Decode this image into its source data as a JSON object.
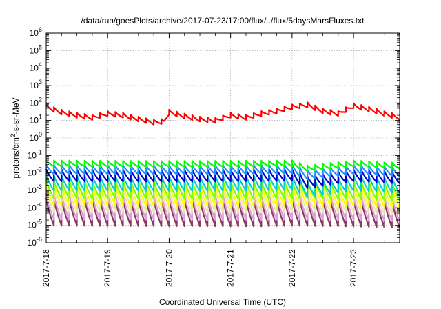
{
  "chart_data": {
    "type": "line",
    "title": "/data/run/goesPlots/archive/2017-07-23/17:00/flux/../flux/5daysMarsFluxes.txt",
    "xlabel": "Coordinated Universal Time (UTC)",
    "ylabel_parts": {
      "pre": "protons/cm",
      "sup": "2",
      "post": "-s-sr-MeV"
    },
    "y_scale": "log",
    "ylim": [
      1e-06,
      1000000
    ],
    "y_ticks": [
      {
        "base": "10",
        "exp": "-6"
      },
      {
        "base": "10",
        "exp": "-5"
      },
      {
        "base": "10",
        "exp": "-4"
      },
      {
        "base": "10",
        "exp": "-3"
      },
      {
        "base": "10",
        "exp": "-2"
      },
      {
        "base": "10",
        "exp": "-1"
      },
      {
        "base": "10",
        "exp": "0"
      },
      {
        "base": "10",
        "exp": "1"
      },
      {
        "base": "10",
        "exp": "2"
      },
      {
        "base": "10",
        "exp": "3"
      },
      {
        "base": "10",
        "exp": "4"
      },
      {
        "base": "10",
        "exp": "5"
      },
      {
        "base": "10",
        "exp": "6"
      }
    ],
    "x_ticks": [
      "2017-7-18",
      "2017-7-19",
      "2017-7-20",
      "2017-7-21",
      "2017-7-22",
      "2017-7-23"
    ],
    "xlim": [
      "2017-07-18 00:00",
      "2017-07-23 18:00"
    ],
    "grid": true,
    "sawtooth_period_hours": 3,
    "series": [
      {
        "color": "#ff0000",
        "points": [
          [
            "2017-07-18 00:00",
            60
          ],
          [
            "2017-07-18 06:00",
            30
          ],
          [
            "2017-07-18 12:00",
            20
          ],
          [
            "2017-07-18 18:00",
            15
          ],
          [
            "2017-07-19 00:00",
            25
          ],
          [
            "2017-07-19 06:00",
            20
          ],
          [
            "2017-07-19 12:00",
            12
          ],
          [
            "2017-07-19 18:00",
            8
          ],
          [
            "2017-07-19 22:00",
            9
          ],
          [
            "2017-07-20 00:00",
            30
          ],
          [
            "2017-07-20 06:00",
            18
          ],
          [
            "2017-07-20 12:00",
            12
          ],
          [
            "2017-07-20 18:00",
            10
          ],
          [
            "2017-07-21 00:00",
            20
          ],
          [
            "2017-07-21 06:00",
            15
          ],
          [
            "2017-07-21 12:00",
            25
          ],
          [
            "2017-07-21 18:00",
            35
          ],
          [
            "2017-07-22 00:00",
            60
          ],
          [
            "2017-07-22 06:00",
            80
          ],
          [
            "2017-07-22 12:00",
            35
          ],
          [
            "2017-07-22 18:00",
            25
          ],
          [
            "2017-07-23 00:00",
            70
          ],
          [
            "2017-07-23 06:00",
            45
          ],
          [
            "2017-07-23 12:00",
            25
          ],
          [
            "2017-07-23 18:00",
            15
          ]
        ],
        "jump_ratio": 1.9
      },
      {
        "color": "#00ff00",
        "points": [
          [
            "2017-07-18 00:00",
            0.035
          ],
          [
            "2017-07-20 00:00",
            0.032
          ],
          [
            "2017-07-21 12:00",
            0.034
          ],
          [
            "2017-07-22 00:00",
            0.035
          ],
          [
            "2017-07-22 06:00",
            0.018
          ],
          [
            "2017-07-23 00:00",
            0.035
          ],
          [
            "2017-07-23 18:00",
            0.025
          ]
        ],
        "jump_ratio": 2.2
      },
      {
        "color": "#1e90ff",
        "points": [
          [
            "2017-07-18 00:00",
            0.016
          ],
          [
            "2017-07-20 00:00",
            0.015
          ],
          [
            "2017-07-21 12:00",
            0.016
          ],
          [
            "2017-07-22 00:00",
            0.017
          ],
          [
            "2017-07-22 06:00",
            0.008
          ],
          [
            "2017-07-23 00:00",
            0.016
          ],
          [
            "2017-07-23 18:00",
            0.012
          ]
        ],
        "jump_ratio": 3.5
      },
      {
        "color": "#0000cd",
        "points": [
          [
            "2017-07-18 00:00",
            0.0075
          ],
          [
            "2017-07-20 00:00",
            0.007
          ],
          [
            "2017-07-21 12:00",
            0.0075
          ],
          [
            "2017-07-22 00:00",
            0.008
          ],
          [
            "2017-07-22 06:00",
            0.003
          ],
          [
            "2017-07-23 00:00",
            0.0075
          ],
          [
            "2017-07-23 18:00",
            0.0055
          ]
        ],
        "jump_ratio": 5
      },
      {
        "color": "#00ced1",
        "points": [
          [
            "2017-07-18 00:00",
            0.0028
          ],
          [
            "2017-07-20 00:00",
            0.0026
          ],
          [
            "2017-07-21 12:00",
            0.0028
          ],
          [
            "2017-07-22 00:00",
            0.003
          ],
          [
            "2017-07-22 06:00",
            0.0012
          ],
          [
            "2017-07-23 00:00",
            0.0028
          ],
          [
            "2017-07-23 18:00",
            0.002
          ]
        ],
        "jump_ratio": 8
      },
      {
        "color": "#7fff00",
        "points": [
          [
            "2017-07-18 00:00",
            0.0012
          ],
          [
            "2017-07-21 12:00",
            0.0011
          ],
          [
            "2017-07-22 00:00",
            0.0012
          ],
          [
            "2017-07-23 00:00",
            0.0011
          ],
          [
            "2017-07-23 18:00",
            0.0009
          ]
        ],
        "jump_ratio": 12
      },
      {
        "color": "#ffff00",
        "points": [
          [
            "2017-07-18 00:00",
            0.0006
          ],
          [
            "2017-07-21 12:00",
            0.00055
          ],
          [
            "2017-07-22 00:00",
            0.0006
          ],
          [
            "2017-07-23 00:00",
            0.00055
          ],
          [
            "2017-07-23 18:00",
            0.00045
          ]
        ],
        "jump_ratio": 20
      },
      {
        "color": "#eee8aa",
        "points": [
          [
            "2017-07-18 00:00",
            0.00028
          ],
          [
            "2017-07-21 12:00",
            0.00026
          ],
          [
            "2017-07-22 00:00",
            0.00028
          ],
          [
            "2017-07-23 00:00",
            0.00026
          ],
          [
            "2017-07-23 18:00",
            0.0002
          ]
        ],
        "jump_ratio": 25
      },
      {
        "color": "#dda0dd",
        "points": [
          [
            "2017-07-18 00:00",
            0.00012
          ],
          [
            "2017-07-21 12:00",
            0.00011
          ],
          [
            "2017-07-22 00:00",
            0.00012
          ],
          [
            "2017-07-23 00:00",
            0.00011
          ],
          [
            "2017-07-23 18:00",
            9e-05
          ]
        ],
        "jump_ratio": 30
      },
      {
        "color": "#8b3a62",
        "points": [
          [
            "2017-07-18 00:00",
            6e-05
          ],
          [
            "2017-07-21 12:00",
            5.5e-05
          ],
          [
            "2017-07-22 00:00",
            6e-05
          ],
          [
            "2017-07-23 00:00",
            5.5e-05
          ],
          [
            "2017-07-23 18:00",
            4.5e-05
          ]
        ],
        "jump_ratio": 40
      }
    ]
  }
}
